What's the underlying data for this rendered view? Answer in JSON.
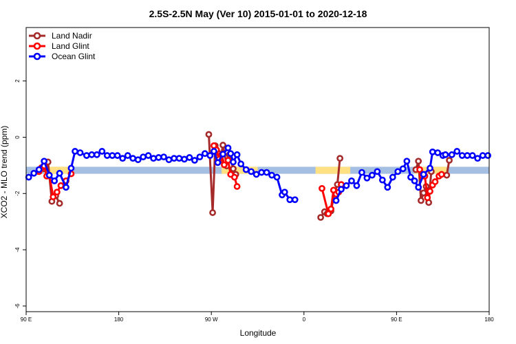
{
  "chart_data": {
    "type": "line",
    "title": "2.5S-2.5N May (Ver 10)   2015-01-01 to 2020-12-18",
    "xlabel": "Longitude",
    "ylabel": "XCO2 - MLO trend (ppm)",
    "xlim": [
      0,
      360
    ],
    "ylim": [
      -6.2,
      3.9
    ],
    "x_ticks": [
      {
        "value": 0,
        "label": "90 E"
      },
      {
        "value": 72,
        "label": "180"
      },
      {
        "value": 144,
        "label": "90 W"
      },
      {
        "value": 216,
        "label": "0"
      },
      {
        "value": 288,
        "label": "90 E"
      },
      {
        "value": 360,
        "label": "180"
      }
    ],
    "y_ticks": [
      {
        "value": 2,
        "label": "2"
      },
      {
        "value": 0,
        "label": "0"
      },
      {
        "value": -2,
        "label": "-2"
      },
      {
        "value": -4,
        "label": "-4"
      },
      {
        "value": -6,
        "label": "-6"
      }
    ],
    "legend_position": "top-left",
    "background_band": {
      "y_range": [
        -1.3,
        -1.05
      ],
      "land_color": "#ffe082",
      "ocean_color": "#a4bfe1",
      "land_segments": [
        [
          14,
          37
        ],
        [
          152,
          180
        ],
        [
          225,
          252
        ],
        [
          302,
          327
        ]
      ]
    },
    "series": [
      {
        "name": "Land Nadir",
        "color": "#a52a2a",
        "segments": [
          {
            "x": [
              14,
              15,
              17,
              20,
              23,
              26
            ],
            "y": [
              -1.12,
              -0.92,
              -0.88,
              -2.28,
              -2.08,
              -2.35
            ]
          },
          {
            "x": [
              142,
              145,
              147,
              149,
              151,
              153,
              156,
              158,
              161,
              163
            ],
            "y": [
              0.1,
              -2.68,
              -0.3,
              -0.55,
              -0.82,
              -0.28,
              -1.02,
              -0.62,
              -1.12,
              -1.32
            ]
          },
          {
            "x": [
              229,
              232,
              234,
              237,
              240,
              242,
              244
            ],
            "y": [
              -2.85,
              -2.65,
              -2.72,
              -2.62,
              -1.92,
              -1.68,
              -0.75
            ]
          },
          {
            "x": [
              303,
              305,
              307,
              309,
              311,
              313,
              315
            ],
            "y": [
              -1.15,
              -0.85,
              -2.25,
              -1.98,
              -1.75,
              -2.32,
              -1.22
            ]
          },
          {
            "x": [
              327,
              329
            ],
            "y": [
              -1.35,
              -0.82
            ]
          }
        ]
      },
      {
        "name": "Land Glint",
        "color": "#ff0000",
        "segments": [
          {
            "x": [
              10,
              12,
              14,
              16,
              18,
              21,
              24,
              27,
              31,
              35
            ],
            "y": [
              -1.22,
              -1.08,
              -1.02,
              -1.38,
              -1.35,
              -2.12,
              -1.95,
              -1.72,
              -1.55,
              -1.3
            ]
          },
          {
            "x": [
              146,
              148,
              150,
              152,
              154,
              157,
              159,
              162,
              164
            ],
            "y": [
              -0.3,
              -0.45,
              -0.78,
              -0.62,
              -0.98,
              -0.82,
              -1.32,
              -1.42,
              -1.75
            ]
          },
          {
            "x": [
              230,
              235,
              237,
              239,
              241,
              243,
              245
            ],
            "y": [
              -1.82,
              -2.72,
              -2.55,
              -1.88,
              -2.02,
              -1.95,
              -1.68
            ]
          },
          {
            "x": [
              306,
              308,
              310,
              312,
              314,
              316,
              318,
              321,
              323
            ],
            "y": [
              -1.15,
              -1.38,
              -1.38,
              -2.15,
              -1.92,
              -1.7,
              -1.58,
              -1.38,
              -1.32
            ]
          }
        ]
      },
      {
        "name": "Ocean Glint",
        "color": "#0000ff",
        "segments": [
          {
            "x": [
              2,
              6,
              10,
              14,
              18,
              22,
              26,
              31,
              35,
              38,
              42,
              47,
              51,
              55,
              59,
              63,
              67,
              71,
              75,
              79,
              83,
              87,
              91,
              95,
              99,
              103,
              107,
              111,
              115,
              119,
              123,
              127,
              131,
              135,
              139,
              143,
              146,
              149,
              153,
              157,
              159,
              161,
              164,
              167,
              171,
              175,
              179,
              183,
              187,
              191,
              195,
              199,
              201,
              205,
              209
            ],
            "y": [
              -1.42,
              -1.28,
              -1.15,
              -0.85,
              -1.35,
              -1.55,
              -1.28,
              -1.78,
              -1.1,
              -0.5,
              -0.55,
              -0.65,
              -0.62,
              -0.62,
              -0.5,
              -0.65,
              -0.65,
              -0.65,
              -0.75,
              -0.65,
              -0.75,
              -0.8,
              -0.7,
              -0.65,
              -0.75,
              -0.72,
              -0.7,
              -0.8,
              -0.75,
              -0.75,
              -0.78,
              -0.72,
              -0.82,
              -0.7,
              -0.58,
              -0.65,
              -0.5,
              -0.9,
              -0.6,
              -0.38,
              -0.58,
              -0.88,
              -0.62,
              -0.95,
              -1.15,
              -1.22,
              -1.32,
              -1.25,
              -1.25,
              -1.35,
              -1.42,
              -2.05,
              -1.95,
              -2.22,
              -2.22
            ]
          },
          {
            "x": [
              241,
              245,
              249,
              253,
              257,
              261,
              265,
              269,
              273,
              277,
              281,
              285,
              289,
              293,
              296,
              299,
              302,
              305,
              309,
              314,
              316,
              320,
              324,
              326,
              331,
              335,
              339,
              343,
              347,
              351,
              355,
              359
            ],
            "y": [
              -2.25,
              -1.85,
              -1.72,
              -1.55,
              -1.72,
              -1.25,
              -1.45,
              -1.35,
              -1.22,
              -1.52,
              -1.78,
              -1.42,
              -1.22,
              -1.12,
              -0.85,
              -1.42,
              -1.55,
              -1.78,
              -1.32,
              -1.1,
              -0.52,
              -0.55,
              -0.65,
              -0.62,
              -0.62,
              -0.5,
              -0.65,
              -0.65,
              -0.65,
              -0.75,
              -0.65,
              -0.65
            ]
          }
        ]
      }
    ]
  }
}
